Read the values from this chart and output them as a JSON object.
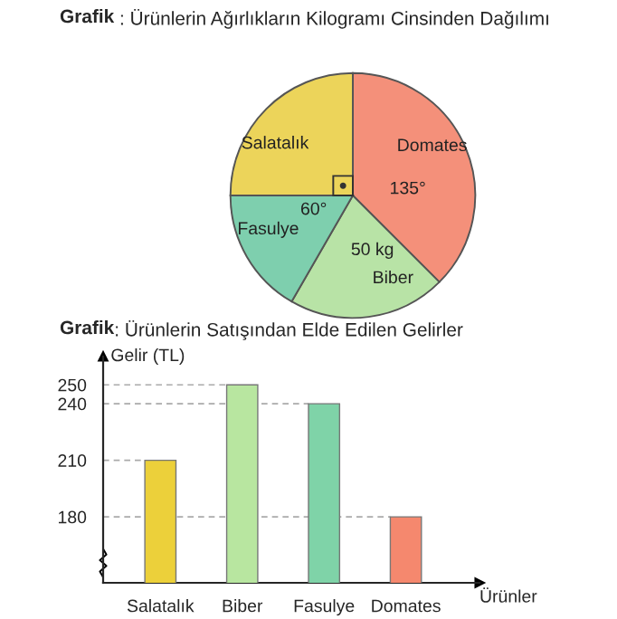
{
  "chart_data": [
    {
      "type": "pie",
      "title": "Grafik : Ürünlerin Ağırlıkların Kilogramı Cinsinden Dağılımı",
      "categories": [
        "Domates",
        "Biber",
        "Fasulye",
        "Salatalık"
      ],
      "values": [
        37.5,
        20.83,
        16.67,
        25
      ],
      "colors": [
        "#f4907a",
        "#b8e3a6",
        "#7ecfae",
        "#ecd45a"
      ],
      "annotations": [
        "135°",
        "60°",
        "50 kg"
      ]
    },
    {
      "type": "bar",
      "title": "Grafik: Ürünlerin Satışından Elde Edilen Gelirler",
      "categories": [
        "Salatalık",
        "Biber",
        "Fasulye",
        "Domates"
      ],
      "values": [
        210,
        250,
        240,
        180
      ],
      "colors": [
        "#ecd03a",
        "#b8e6a0",
        "#7fd3a8",
        "#f5886e"
      ],
      "xlabel": "Ürünler",
      "ylabel": "Gelir (TL)",
      "ylim": [
        145,
        265
      ],
      "yticks": [
        180,
        210,
        240,
        250
      ],
      "ref_lines": [
        {
          "axis": "y",
          "value": 250,
          "line_style": "dashed"
        },
        {
          "axis": "y",
          "value": 240,
          "line_style": "dashed"
        },
        {
          "axis": "y",
          "value": 210,
          "line_style": "dashed"
        },
        {
          "axis": "y",
          "value": 180,
          "line_style": "dashed"
        }
      ]
    }
  ]
}
